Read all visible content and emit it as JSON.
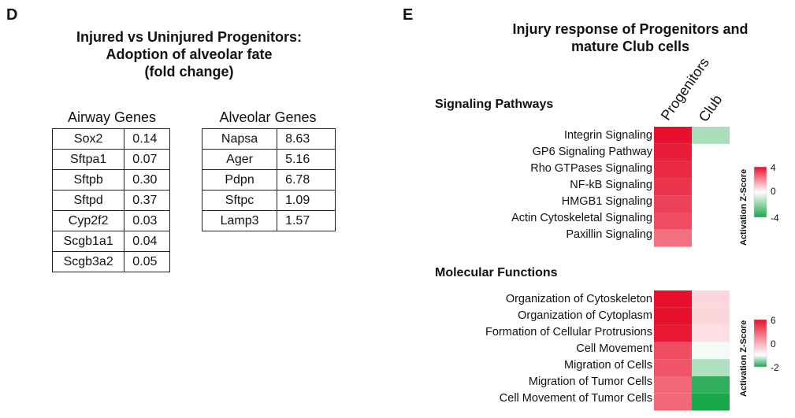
{
  "panel_d": {
    "letter": "D",
    "title_lines": [
      "Injured vs Uninjured Progenitors:",
      "Adoption of alveolar fate",
      "(fold change)"
    ],
    "airway": {
      "header": "Airway Genes",
      "rows": [
        {
          "gene": "Sox2",
          "value": "0.14"
        },
        {
          "gene": "Sftpa1",
          "value": "0.07"
        },
        {
          "gene": "Sftpb",
          "value": "0.30"
        },
        {
          "gene": "Sftpd",
          "value": "0.37"
        },
        {
          "gene": "Cyp2f2",
          "value": "0.03"
        },
        {
          "gene": "Scgb1a1",
          "value": "0.04"
        },
        {
          "gene": "Scgb3a2",
          "value": "0.05"
        }
      ]
    },
    "alveolar": {
      "header": "Alveolar Genes",
      "rows": [
        {
          "gene": "Napsa",
          "value": "8.63"
        },
        {
          "gene": "Ager",
          "value": "5.16"
        },
        {
          "gene": "Pdpn",
          "value": "6.78"
        },
        {
          "gene": "Sftpc",
          "value": "1.09"
        },
        {
          "gene": "Lamp3",
          "value": "1.57"
        }
      ]
    }
  },
  "panel_e": {
    "letter": "E",
    "title_lines": [
      "Injury response of Progenitors and",
      "mature Club cells"
    ],
    "column_headers": [
      "Progenitors",
      "Club"
    ]
  },
  "chart_data": [
    {
      "type": "heatmap",
      "title": "Signaling Pathways",
      "columns": [
        "Progenitors",
        "Club"
      ],
      "rows": [
        "Integrin Signaling",
        "GP6 Signaling Pathway",
        "Rho GTPases Signaling",
        "NF-kB Signaling",
        "HMGB1 Signaling",
        "Actin Cytoskeletal Signaling",
        "Paxillin Signaling"
      ],
      "values": [
        [
          4.0,
          -1.5
        ],
        [
          3.8,
          null
        ],
        [
          3.6,
          null
        ],
        [
          3.4,
          null
        ],
        [
          3.2,
          null
        ],
        [
          3.0,
          null
        ],
        [
          2.4,
          null
        ]
      ],
      "legend": {
        "title": "Activation Z-Score",
        "ticks": [
          "4",
          "0",
          "-4"
        ],
        "min": -4,
        "max": 4
      },
      "colors": {
        "high": "#e8112d",
        "mid": "#ffffff",
        "low": "#1aa64a"
      }
    },
    {
      "type": "heatmap",
      "title": "Molecular Functions",
      "columns": [
        "Progenitors",
        "Club"
      ],
      "rows": [
        "Organization of Cytoskeleton",
        "Organization of Cytoplasm",
        "Formation of Cellular Protrusions",
        "Cell Movement",
        "Migration of Cells",
        "Migration of Tumor Cells",
        "Cell Movement of Tumor Cells"
      ],
      "values": [
        [
          6.0,
          1.0
        ],
        [
          6.0,
          1.0
        ],
        [
          5.8,
          0.8
        ],
        [
          4.5,
          -0.1
        ],
        [
          4.3,
          -0.7
        ],
        [
          3.8,
          -1.8
        ],
        [
          3.8,
          -2.0
        ]
      ],
      "legend": {
        "title": "Activation Z-Score",
        "ticks": [
          "6",
          "0",
          "-2"
        ],
        "min": -2,
        "max": 6
      },
      "colors": {
        "high": "#e8112d",
        "mid": "#ffffff",
        "low": "#1aa64a"
      }
    }
  ]
}
